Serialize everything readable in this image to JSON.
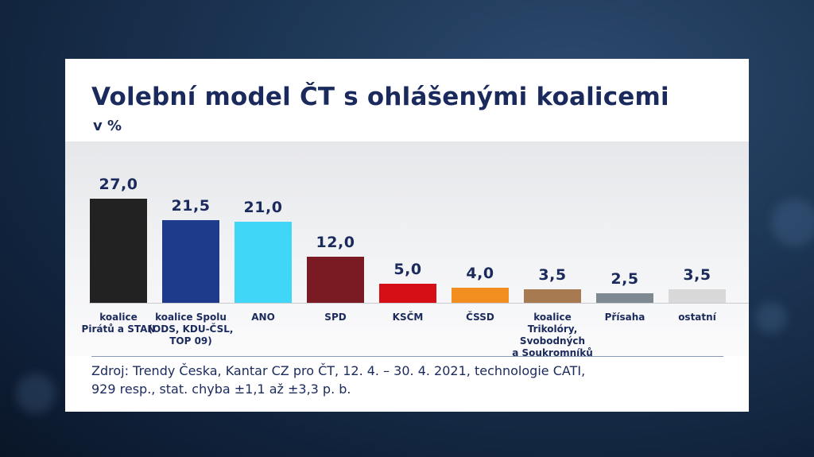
{
  "header": {
    "title": "Volební model ČT s ohlášenými koalicemi",
    "subtitle": "v %"
  },
  "bars": [
    {
      "label": "koalice Pirátů a STAN",
      "label_lines": [
        "koalice",
        "Pirátů a STAN"
      ],
      "value_text": "27,0",
      "value": 27.0,
      "color": "#222222"
    },
    {
      "label": "koalice Spolu (ODS, KDU-ČSL, TOP 09)",
      "label_lines": [
        "koalice Spolu",
        "(ODS, KDU-ČSL,",
        "TOP 09)"
      ],
      "value_text": "21,5",
      "value": 21.5,
      "color": "#1e3a8a"
    },
    {
      "label": "ANO",
      "label_lines": [
        "ANO"
      ],
      "value_text": "21,0",
      "value": 21.0,
      "color": "#3fd6f8"
    },
    {
      "label": "SPD",
      "label_lines": [
        "SPD"
      ],
      "value_text": "12,0",
      "value": 12.0,
      "color": "#7a1a22"
    },
    {
      "label": "KSČM",
      "label_lines": [
        "KSČM"
      ],
      "value_text": "5,0",
      "value": 5.0,
      "color": "#d60f16"
    },
    {
      "label": "ČSSD",
      "label_lines": [
        "ČSSD"
      ],
      "value_text": "4,0",
      "value": 4.0,
      "color": "#f28e1f"
    },
    {
      "label": "koalice Trikolóry, Svobodných a Soukromníků",
      "label_lines": [
        "koalice Trikolóry,",
        "Svobodných",
        "a Soukromníků"
      ],
      "value_text": "3,5",
      "value": 3.5,
      "color": "#a77a52"
    },
    {
      "label": "Přísaha",
      "label_lines": [
        "Přísaha"
      ],
      "value_text": "2,5",
      "value": 2.5,
      "color": "#7d8891"
    },
    {
      "label": "ostatní",
      "label_lines": [
        "ostatní"
      ],
      "value_text": "3,5",
      "value": 3.5,
      "color": "#d8d8d8"
    }
  ],
  "footer": {
    "source_line1": "Zdroj: Trendy Česka, Kantar CZ pro ČT, 12. 4. – 30. 4. 2021, technologie CATI,",
    "source_line2": "929 resp., stat. chyba ±1,1 až ±3,3 p. b."
  },
  "chart_data": {
    "type": "bar",
    "title": "Volební model ČT s ohlášenými koalicemi",
    "subtitle": "v %",
    "xlabel": "",
    "ylabel": "%",
    "categories": [
      "koalice Pirátů a STAN",
      "koalice Spolu (ODS, KDU-ČSL, TOP 09)",
      "ANO",
      "SPD",
      "KSČM",
      "ČSSD",
      "koalice Trikolóry, Svobodných a Soukromníků",
      "Přísaha",
      "ostatní"
    ],
    "values": [
      27.0,
      21.5,
      21.0,
      12.0,
      5.0,
      4.0,
      3.5,
      2.5,
      3.5
    ],
    "colors": [
      "#222222",
      "#1e3a8a",
      "#3fd6f8",
      "#7a1a22",
      "#d60f16",
      "#f28e1f",
      "#a77a52",
      "#7d8891",
      "#d8d8d8"
    ],
    "data_labels": [
      "27,0",
      "21,5",
      "21,0",
      "12,0",
      "5,0",
      "4,0",
      "3,5",
      "2,5",
      "3,5"
    ],
    "ylim": [
      0,
      27
    ],
    "grid": false,
    "legend": "none",
    "source": "Zdroj: Trendy Česka, Kantar CZ pro ČT, 12. 4. – 30. 4. 2021, technologie CATI, 929 resp., stat. chyba ±1,1 až ±3,3 p. b."
  }
}
